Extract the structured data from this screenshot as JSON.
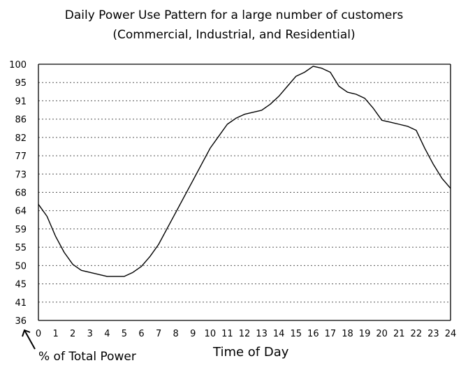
{
  "chart_data": {
    "type": "line",
    "title": "Daily Power Use Pattern for a  large number of customers",
    "subtitle": "(Commercial, Industrial, and Residential)",
    "xlabel": "Time of Day",
    "ylabel": "% of Total Power",
    "xlim": [
      0,
      24
    ],
    "ylim": [
      36,
      100
    ],
    "x_ticks": [
      0,
      1,
      2,
      3,
      4,
      5,
      6,
      7,
      8,
      9,
      10,
      11,
      12,
      13,
      14,
      15,
      16,
      17,
      18,
      19,
      20,
      21,
      22,
      23,
      24
    ],
    "y_ticks": [
      100,
      95,
      91,
      86,
      82,
      77,
      73,
      68,
      64,
      59,
      55,
      50,
      45,
      41,
      36
    ],
    "grid": "horizontal dotted",
    "series": [
      {
        "x": [
          0,
          0.5,
          1,
          1.5,
          2,
          2.5,
          3,
          3.5,
          4,
          4.5,
          5,
          5.5,
          6,
          6.5,
          7,
          7.5,
          8,
          8.5,
          9,
          9.5,
          10,
          10.5,
          11,
          11.5,
          12,
          12.5,
          13,
          13.5,
          14,
          14.5,
          15,
          15.5,
          16,
          16.5,
          17,
          17.5,
          18,
          18.5,
          19,
          19.5,
          20,
          20.5,
          21,
          21.5,
          22,
          22.5,
          23,
          23.5,
          24
        ],
        "values": [
          65,
          62,
          57,
          53,
          50,
          48.5,
          48,
          47.5,
          47,
          47,
          47,
          48,
          49.5,
          52,
          55,
          59,
          63,
          67,
          71,
          75,
          79,
          82,
          85,
          86.5,
          87.5,
          88,
          88.5,
          90,
          92,
          94.5,
          97,
          98,
          99.5,
          99,
          98,
          94.5,
          93,
          92.5,
          91.5,
          89,
          86,
          85.5,
          85,
          84.5,
          83.5,
          79,
          75,
          71.5,
          69
        ]
      }
    ],
    "color": "#000000"
  }
}
